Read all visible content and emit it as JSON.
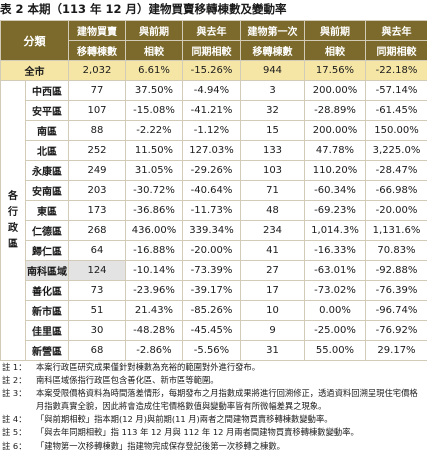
{
  "title": "表 2 本期（113 年 12 月）建物買賣移轉棟數及變動率",
  "headers": {
    "category": "分類",
    "col1": [
      "建物買賣",
      "移轉棟數"
    ],
    "col2": [
      "與前期",
      "相較"
    ],
    "col3": [
      "與去年",
      "同期相較"
    ],
    "col4": [
      "建物第一次",
      "移轉棟數"
    ],
    "col5": [
      "與前期",
      "相較"
    ],
    "col6": [
      "與去年",
      "同期相較"
    ]
  },
  "whole_city": {
    "label": "全市",
    "values": [
      "2,032",
      "6.61%",
      "-15.26%",
      "944",
      "17.56%",
      "-22.18%"
    ]
  },
  "region_label": [
    "各",
    "行",
    "政",
    "區"
  ],
  "rows": [
    {
      "name": "中西區",
      "values": [
        "77",
        "37.50%",
        "-4.94%",
        "3",
        "200.00%",
        "-57.14%"
      ]
    },
    {
      "name": "安平區",
      "values": [
        "107",
        "-15.08%",
        "-41.21%",
        "32",
        "-28.89%",
        "-61.45%"
      ]
    },
    {
      "name": "南區",
      "values": [
        "88",
        "-2.22%",
        "-1.12%",
        "15",
        "200.00%",
        "150.00%"
      ]
    },
    {
      "name": "北區",
      "values": [
        "252",
        "11.50%",
        "127.03%",
        "133",
        "47.78%",
        "3,225.0%"
      ]
    },
    {
      "name": "永康區",
      "values": [
        "249",
        "31.05%",
        "-29.26%",
        "103",
        "110.20%",
        "-28.47%"
      ]
    },
    {
      "name": "安南區",
      "values": [
        "203",
        "-30.72%",
        "-40.64%",
        "71",
        "-60.34%",
        "-66.98%"
      ]
    },
    {
      "name": "東區",
      "values": [
        "173",
        "-36.86%",
        "-11.73%",
        "48",
        "-69.23%",
        "-20.00%"
      ]
    },
    {
      "name": "仁德區",
      "values": [
        "268",
        "436.00%",
        "339.34%",
        "234",
        "1,014.3%",
        "1,131.6%"
      ]
    },
    {
      "name": "歸仁區",
      "values": [
        "64",
        "-16.88%",
        "-20.00%",
        "41",
        "-16.33%",
        "70.83%"
      ]
    },
    {
      "name": "南科區域",
      "values": [
        "124",
        "-10.14%",
        "-73.39%",
        "27",
        "-63.01%",
        "-92.88%"
      ],
      "highlight": true
    },
    {
      "name": "善化區",
      "values": [
        "73",
        "-23.96%",
        "-39.17%",
        "17",
        "-73.02%",
        "-76.39%"
      ]
    },
    {
      "name": "新市區",
      "values": [
        "51",
        "21.43%",
        "-85.26%",
        "10",
        "0.00%",
        "-96.74%"
      ]
    },
    {
      "name": "佳里區",
      "values": [
        "30",
        "-48.28%",
        "-45.45%",
        "9",
        "-25.00%",
        "-76.92%"
      ]
    },
    {
      "name": "新營區",
      "values": [
        "68",
        "-2.86%",
        "-5.56%",
        "31",
        "55.00%",
        "29.17%"
      ]
    }
  ],
  "notes": [
    {
      "key": "註 1：",
      "text": "本案行政區研究成果僅針對棟數為充裕的範圍對外進行發布。"
    },
    {
      "key": "註 2：",
      "text": "南科區域係指行政區包含善化區、新市區等範圍。"
    },
    {
      "key": "註 3：",
      "text": "本案受限價格資料為時間落差情形，每期發布之月指數成果將進行回溯修正，透過資料回溯呈現住宅價格月指數真實全貌，因此將會造成住宅價格數值與變動率皆有所微幅差異之現象。"
    },
    {
      "key": "註 4：",
      "text": "「與前期相較」指本期(12 月)與前期(11 月)兩者之間建物買賣移轉棟數變動率。"
    },
    {
      "key": "註 5：",
      "text": "「與去年同期相較」指 113 年 12 月與 112 年 12 月兩者間建物買賣移轉棟數變動率。"
    },
    {
      "key": "註 6：",
      "text": "「建物第一次移轉棟數」指建物完成保存登記後第一次移轉之棟數。"
    }
  ]
}
